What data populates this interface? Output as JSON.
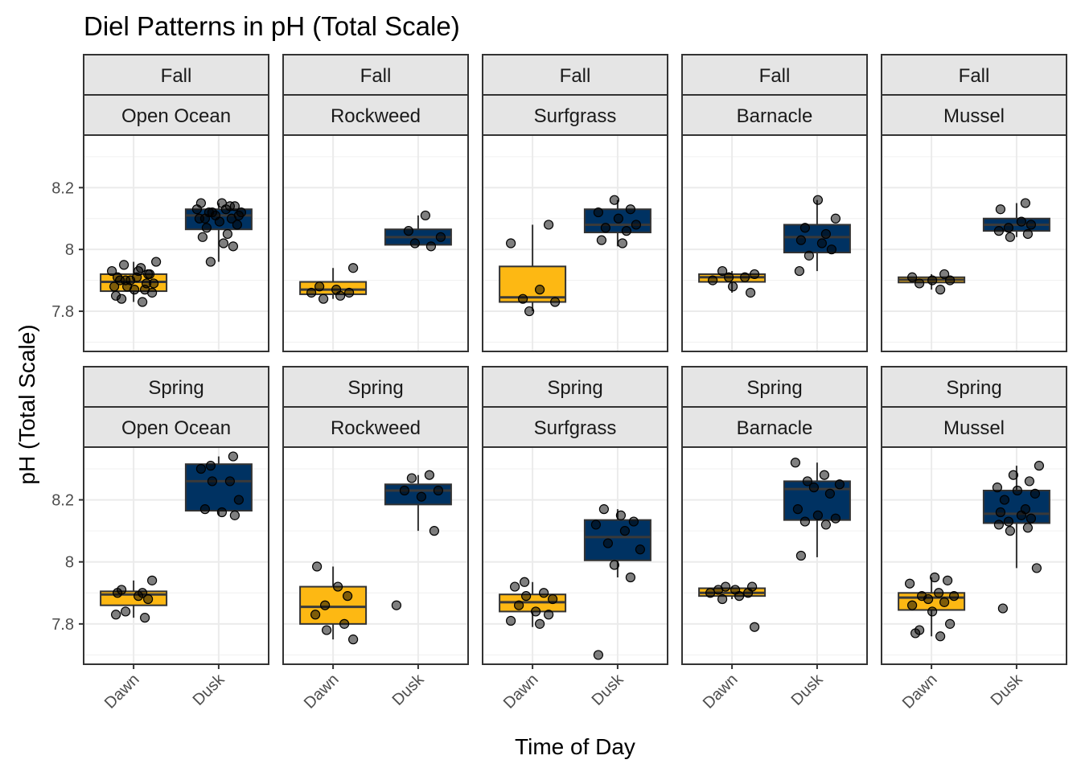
{
  "chart_data": {
    "type": "box",
    "title": "Diel Patterns in pH (Total Scale)",
    "xlabel": "Time of Day",
    "ylabel": "pH (Total Scale)",
    "categories": [
      "Dawn",
      "Dusk"
    ],
    "ylim": [
      7.67,
      8.37
    ],
    "yticks": [
      7.8,
      8.0,
      8.2
    ],
    "grid": true,
    "colors": {
      "Dawn": "#FDB813",
      "Dusk": "#003262",
      "points": "#000000",
      "median": "#3a3a3a"
    },
    "panels": [
      {
        "season": "Fall",
        "site": "Open Ocean",
        "boxes": [
          {
            "category": "Dawn",
            "q1": 7.865,
            "median": 7.895,
            "q3": 7.92,
            "whisker_low": 7.83,
            "whisker_high": 7.96,
            "points": [
              7.85,
              7.87,
              7.88,
              7.89,
              7.9,
              7.91,
              7.92,
              7.93,
              7.94,
              7.95,
              7.96,
              7.9,
              7.89,
              7.88,
              7.87,
              7.86,
              7.84,
              7.83,
              7.91,
              7.93,
              7.92,
              7.9
            ]
          },
          {
            "category": "Dusk",
            "q1": 8.065,
            "median": 8.11,
            "q3": 8.13,
            "whisker_low": 7.96,
            "whisker_high": 8.15,
            "points": [
              8.15,
              8.14,
              8.13,
              8.13,
              8.12,
              8.12,
              8.11,
              8.1,
              8.1,
              8.09,
              8.08,
              8.07,
              8.05,
              8.04,
              8.02,
              8.01,
              7.96,
              8.15,
              8.14,
              8.12,
              8.11,
              8.1
            ]
          }
        ]
      },
      {
        "season": "Fall",
        "site": "Rockweed",
        "boxes": [
          {
            "category": "Dawn",
            "q1": 7.855,
            "median": 7.87,
            "q3": 7.895,
            "whisker_low": 7.84,
            "whisker_high": 7.94,
            "points": [
              7.94,
              7.88,
              7.87,
              7.86,
              7.86,
              7.85,
              7.84
            ]
          },
          {
            "category": "Dusk",
            "q1": 8.015,
            "median": 8.04,
            "q3": 8.065,
            "whisker_low": 8.01,
            "whisker_high": 8.11,
            "points": [
              8.11,
              8.06,
              8.04,
              8.02,
              8.01
            ]
          }
        ]
      },
      {
        "season": "Fall",
        "site": "Surfgrass",
        "boxes": [
          {
            "category": "Dawn",
            "q1": 7.83,
            "median": 7.845,
            "q3": 7.945,
            "whisker_low": 7.8,
            "whisker_high": 8.08,
            "points": [
              8.08,
              8.02,
              7.87,
              7.84,
              7.83,
              7.8
            ]
          },
          {
            "category": "Dusk",
            "q1": 8.055,
            "median": 8.08,
            "q3": 8.13,
            "whisker_low": 8.01,
            "whisker_high": 8.16,
            "points": [
              8.16,
              8.13,
              8.12,
              8.1,
              8.08,
              8.07,
              8.06,
              8.03,
              8.02
            ]
          }
        ]
      },
      {
        "season": "Fall",
        "site": "Barnacle",
        "boxes": [
          {
            "category": "Dawn",
            "q1": 7.895,
            "median": 7.91,
            "q3": 7.92,
            "whisker_low": 7.86,
            "whisker_high": 7.93,
            "points": [
              7.93,
              7.92,
              7.91,
              7.91,
              7.9,
              7.88,
              7.86
            ]
          },
          {
            "category": "Dusk",
            "q1": 7.99,
            "median": 8.04,
            "q3": 8.08,
            "whisker_low": 7.93,
            "whisker_high": 8.16,
            "points": [
              8.16,
              8.1,
              8.07,
              8.05,
              8.03,
              8.02,
              8.0,
              7.98,
              7.93
            ]
          }
        ]
      },
      {
        "season": "Fall",
        "site": "Mussel",
        "boxes": [
          {
            "category": "Dawn",
            "q1": 7.893,
            "median": 7.902,
            "q3": 7.91,
            "whisker_low": 7.87,
            "whisker_high": 7.92,
            "points": [
              7.92,
              7.91,
              7.9,
              7.9,
              7.89,
              7.87
            ]
          },
          {
            "category": "Dusk",
            "q1": 8.06,
            "median": 8.08,
            "q3": 8.1,
            "whisker_low": 8.04,
            "whisker_high": 8.15,
            "points": [
              8.15,
              8.13,
              8.09,
              8.08,
              8.07,
              8.06,
              8.05,
              8.04
            ]
          }
        ]
      },
      {
        "season": "Spring",
        "site": "Open Ocean",
        "boxes": [
          {
            "category": "Dawn",
            "q1": 7.86,
            "median": 7.895,
            "q3": 7.905,
            "whisker_low": 7.82,
            "whisker_high": 7.94,
            "points": [
              7.94,
              7.91,
              7.9,
              7.9,
              7.89,
              7.88,
              7.84,
              7.83,
              7.82
            ]
          },
          {
            "category": "Dusk",
            "q1": 8.165,
            "median": 8.26,
            "q3": 8.315,
            "whisker_low": 8.15,
            "whisker_high": 8.34,
            "points": [
              8.34,
              8.31,
              8.3,
              8.26,
              8.26,
              8.2,
              8.17,
              8.16,
              8.15
            ]
          }
        ]
      },
      {
        "season": "Spring",
        "site": "Rockweed",
        "boxes": [
          {
            "category": "Dawn",
            "q1": 7.8,
            "median": 7.855,
            "q3": 7.92,
            "whisker_low": 7.75,
            "whisker_high": 7.985,
            "points": [
              7.985,
              7.92,
              7.89,
              7.86,
              7.83,
              7.8,
              7.78,
              7.75
            ]
          },
          {
            "category": "Dusk",
            "q1": 8.185,
            "median": 8.23,
            "q3": 8.25,
            "whisker_low": 8.1,
            "whisker_high": 8.28,
            "points": [
              8.28,
              8.27,
              8.23,
              8.23,
              8.21,
              8.1,
              7.86
            ]
          }
        ]
      },
      {
        "season": "Spring",
        "site": "Surfgrass",
        "boxes": [
          {
            "category": "Dawn",
            "q1": 7.84,
            "median": 7.87,
            "q3": 7.895,
            "whisker_low": 7.79,
            "whisker_high": 7.935,
            "points": [
              7.935,
              7.92,
              7.9,
              7.89,
              7.88,
              7.86,
              7.84,
              7.83,
              7.81,
              7.8
            ]
          },
          {
            "category": "Dusk",
            "q1": 8.005,
            "median": 8.08,
            "q3": 8.135,
            "whisker_low": 7.95,
            "whisker_high": 8.17,
            "points": [
              8.17,
              8.15,
              8.13,
              8.12,
              8.1,
              8.06,
              8.04,
              7.99,
              7.95,
              7.7
            ]
          }
        ]
      },
      {
        "season": "Spring",
        "site": "Barnacle",
        "boxes": [
          {
            "category": "Dawn",
            "q1": 7.89,
            "median": 7.9,
            "q3": 7.915,
            "whisker_low": 7.88,
            "whisker_high": 7.92,
            "points": [
              7.92,
              7.92,
              7.91,
              7.91,
              7.9,
              7.9,
              7.89,
              7.88,
              7.79
            ]
          },
          {
            "category": "Dusk",
            "q1": 8.135,
            "median": 8.235,
            "q3": 8.26,
            "whisker_low": 8.015,
            "whisker_high": 8.32,
            "points": [
              8.32,
              8.28,
              8.26,
              8.25,
              8.24,
              8.22,
              8.17,
              8.15,
              8.14,
              8.13,
              8.12,
              8.02
            ]
          }
        ]
      },
      {
        "season": "Spring",
        "site": "Mussel",
        "boxes": [
          {
            "category": "Dawn",
            "q1": 7.845,
            "median": 7.885,
            "q3": 7.9,
            "whisker_low": 7.76,
            "whisker_high": 7.95,
            "points": [
              7.95,
              7.94,
              7.93,
              7.9,
              7.89,
              7.89,
              7.88,
              7.87,
              7.86,
              7.84,
              7.8,
              7.78,
              7.76,
              7.77
            ]
          },
          {
            "category": "Dusk",
            "q1": 8.125,
            "median": 8.155,
            "q3": 8.23,
            "whisker_low": 7.98,
            "whisker_high": 8.31,
            "points": [
              8.31,
              8.28,
              8.26,
              8.24,
              8.23,
              8.22,
              8.2,
              8.17,
              8.16,
              8.15,
              8.14,
              8.13,
              8.12,
              8.11,
              8.1,
              7.98,
              7.85
            ]
          }
        ]
      }
    ]
  }
}
